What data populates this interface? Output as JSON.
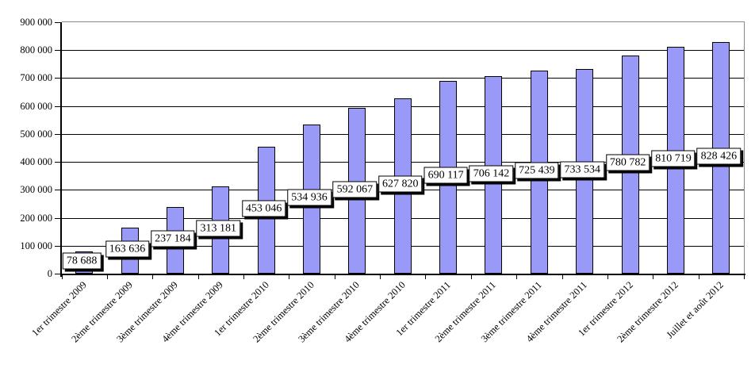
{
  "chart_data": {
    "type": "bar",
    "title": "",
    "categories": [
      "1er trimestre 2009",
      "2ème trimestre 2009",
      "3ème trimestre 2009",
      "4ème trimestre 2009",
      "1er trimestre 2010",
      "2ème trimestre 2010",
      "3ème trimestre 2010",
      "4ème trimestre 2010",
      "1er trimestre 2011",
      "2ème trimestre 2011",
      "3ème trimestre 2011",
      "4ème trimestre 2011",
      "1er trimestre 2012",
      "2ème trimestre 2012",
      "Juillet et août 2012"
    ],
    "values": [
      78688,
      163636,
      237184,
      313181,
      453046,
      534936,
      592067,
      627820,
      690117,
      706142,
      725439,
      733534,
      780782,
      810719,
      828426
    ],
    "value_labels": [
      "78 688",
      "163 636",
      "237 184",
      "313 181",
      "453 046",
      "534 936",
      "592 067",
      "627 820",
      "690 117",
      "706 142",
      "725 439",
      "733 534",
      "780 782",
      "810 719",
      "828 426"
    ],
    "xlabel": "",
    "ylabel": "",
    "ylim": [
      0,
      900000
    ],
    "ytick_interval": 100000,
    "ytick_labels": [
      "0",
      "100 000",
      "200 000",
      "300 000",
      "400 000",
      "500 000",
      "600 000",
      "700 000",
      "800 000",
      "900 000"
    ],
    "grid": "on",
    "legend": "none",
    "data_label_position": "center",
    "colors": {
      "bar_fill": "#9999F8",
      "bar_border": "#000000",
      "gridline": "#000000",
      "plot_border": "#888888",
      "label_box_bg": "#FFFFFF",
      "label_box_border": "#000000",
      "label_box_shadow": "#000000",
      "text": "#000000",
      "background": "#FFFFFF"
    }
  }
}
